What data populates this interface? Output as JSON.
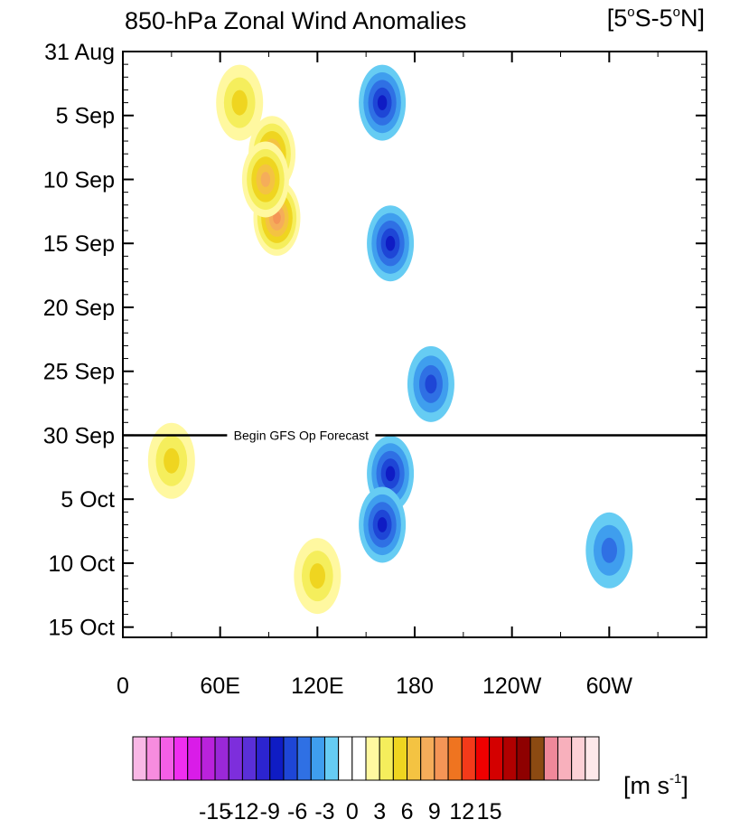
{
  "chart_data": {
    "type": "heatmap",
    "title": "850-hPa Zonal Wind Anomalies",
    "region_label_parts": [
      "[5",
      "o",
      "S-5",
      "o",
      "N]"
    ],
    "x_ticks": [
      "0",
      "60E",
      "120E",
      "180",
      "120W",
      "60W"
    ],
    "x_tick_lon": [
      0,
      60,
      120,
      180,
      240,
      300
    ],
    "x_range_lon": [
      0,
      360
    ],
    "y_ticks": [
      "31 Aug",
      "5 Sep",
      "10 Sep",
      "15 Sep",
      "20 Sep",
      "25 Sep",
      "30 Sep",
      "5 Oct",
      "10 Oct",
      "15 Oct"
    ],
    "y_tick_day": [
      0,
      5,
      10,
      15,
      20,
      25,
      30,
      35,
      40,
      45
    ],
    "y_range_day": [
      0,
      45.8
    ],
    "forecast_line": {
      "label": "Begin GFS Op Forecast",
      "day": 30
    },
    "colorbar": {
      "unit_parts": [
        "[m s",
        "-1",
        "]"
      ],
      "tick_labels": [
        "-15",
        "-12",
        "-9",
        "-6",
        "-3",
        "0",
        "3",
        "6",
        "9",
        "12",
        "15"
      ],
      "tick_values": [
        -15,
        -12,
        -9,
        -6,
        -3,
        0,
        3,
        6,
        9,
        12,
        15
      ],
      "levels": [
        -16.5,
        -15,
        -13.5,
        -12,
        -10.5,
        -9,
        -7.5,
        -6,
        -4.5,
        -3,
        -1.5,
        0,
        1.5,
        3,
        4.5,
        6,
        7.5,
        9,
        10.5,
        12,
        13.5,
        15,
        16.5
      ],
      "colors": [
        "#f9b8e6",
        "#f78cdf",
        "#f45fe6",
        "#ef2ef0",
        "#d91ce8",
        "#ba22dc",
        "#9a28d8",
        "#7d2edc",
        "#5a2fd8",
        "#2c24d0",
        "#0f1cc4",
        "#1e46d6",
        "#2f70e4",
        "#3f9eee",
        "#66ccf3",
        "#ffffff",
        "#ffffff",
        "#fff8a0",
        "#f5ee5c",
        "#efd520",
        "#f4c342",
        "#f5ad5a",
        "#f49556",
        "#ef7420",
        "#f33a1a",
        "#ef0000",
        "#d40000",
        "#b00000",
        "#8e0000",
        "#8c4a12",
        "#f0889a",
        "#f8b0bc",
        "#fcd0d6",
        "#fde8ea"
      ]
    },
    "anomaly_blobs_ms": [
      {
        "lon": 92,
        "day": 8,
        "value": 7.5
      },
      {
        "lon": 95,
        "day": 13,
        "value": 8.5
      },
      {
        "lon": 88,
        "day": 10,
        "value": 7
      },
      {
        "lon": 72,
        "day": 4,
        "value": 5
      },
      {
        "lon": 160,
        "day": 4,
        "value": -7.5
      },
      {
        "lon": 165,
        "day": 15,
        "value": -7.5
      },
      {
        "lon": 190,
        "day": 26,
        "value": -5.5
      },
      {
        "lon": 165,
        "day": 33,
        "value": -7.5
      },
      {
        "lon": 160,
        "day": 37,
        "value": -7
      },
      {
        "lon": 30,
        "day": 32,
        "value": 5
      },
      {
        "lon": 120,
        "day": 41,
        "value": 4.5
      },
      {
        "lon": 300,
        "day": 39,
        "value": -5
      }
    ]
  }
}
